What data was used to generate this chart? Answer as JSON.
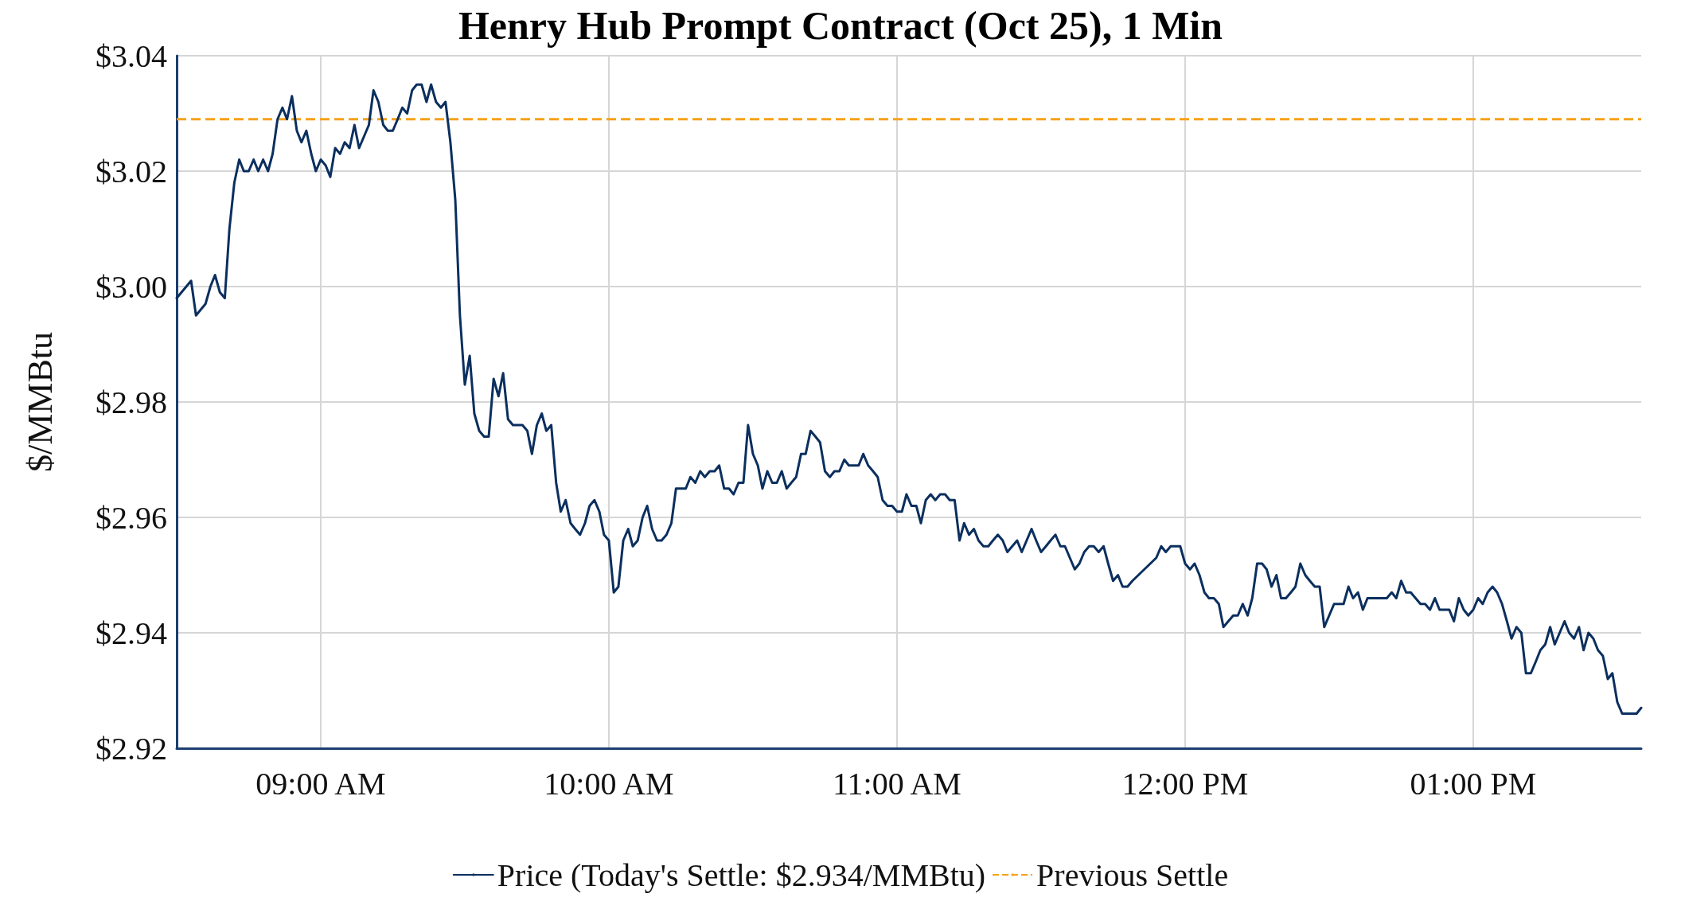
{
  "chart_data": {
    "type": "line",
    "title": "Henry Hub Prompt Contract (Oct 25), 1 Min",
    "ylabel": "$/MMBtu",
    "xlim": [
      8.5,
      13.583
    ],
    "xticks": [
      {
        "value": 9,
        "label": "09:00 AM"
      },
      {
        "value": 10,
        "label": "10:00 AM"
      },
      {
        "value": 11,
        "label": "11:00 AM"
      },
      {
        "value": 12,
        "label": "12:00 PM"
      },
      {
        "value": 13,
        "label": "01:00 PM"
      }
    ],
    "ylim": [
      2.92,
      3.04
    ],
    "yticks": [
      {
        "value": 2.92,
        "label": "$2.92"
      },
      {
        "value": 2.94,
        "label": "$2.94"
      },
      {
        "value": 2.96,
        "label": "$2.96"
      },
      {
        "value": 2.98,
        "label": "$2.98"
      },
      {
        "value": 3.0,
        "label": "$3.00"
      },
      {
        "value": 3.02,
        "label": "$3.02"
      },
      {
        "value": 3.04,
        "label": "$3.04"
      }
    ],
    "grid": true,
    "legend": "bottom",
    "marker": "none",
    "line_style": "solid",
    "ref_lines": [
      {
        "axis": "y",
        "value": 3.029,
        "label": "Previous Settle",
        "color": "#f7a11a",
        "line_style": "dashed"
      }
    ],
    "series": [
      {
        "name": "Price (Today's Settle: $2.934/MMBtu)",
        "color": "#0b2f5e",
        "x": [
          8.5,
          8.55,
          8.567,
          8.6,
          8.617,
          8.633,
          8.65,
          8.667,
          8.683,
          8.7,
          8.717,
          8.733,
          8.75,
          8.767,
          8.783,
          8.8,
          8.817,
          8.833,
          8.85,
          8.867,
          8.883,
          8.9,
          8.917,
          8.933,
          8.95,
          8.967,
          8.983,
          9,
          9.017,
          9.033,
          9.05,
          9.067,
          9.083,
          9.1,
          9.117,
          9.133,
          9.15,
          9.167,
          9.183,
          9.2,
          9.217,
          9.233,
          9.25,
          9.267,
          9.283,
          9.3,
          9.317,
          9.333,
          9.35,
          9.367,
          9.383,
          9.4,
          9.417,
          9.433,
          9.45,
          9.467,
          9.483,
          9.5,
          9.517,
          9.533,
          9.55,
          9.567,
          9.583,
          9.6,
          9.617,
          9.633,
          9.65,
          9.667,
          9.683,
          9.7,
          9.717,
          9.733,
          9.75,
          9.767,
          9.783,
          9.8,
          9.817,
          9.833,
          9.85,
          9.867,
          9.883,
          9.9,
          9.917,
          9.933,
          9.95,
          9.967,
          9.983,
          10,
          10.017,
          10.033,
          10.05,
          10.067,
          10.083,
          10.1,
          10.117,
          10.133,
          10.15,
          10.167,
          10.183,
          10.2,
          10.217,
          10.233,
          10.25,
          10.267,
          10.283,
          10.3,
          10.317,
          10.333,
          10.35,
          10.367,
          10.383,
          10.4,
          10.417,
          10.433,
          10.45,
          10.467,
          10.483,
          10.5,
          10.517,
          10.533,
          10.55,
          10.567,
          10.583,
          10.6,
          10.617,
          10.633,
          10.65,
          10.667,
          10.683,
          10.7,
          10.717,
          10.733,
          10.75,
          10.767,
          10.783,
          10.8,
          10.817,
          10.833,
          10.85,
          10.867,
          10.883,
          10.9,
          10.917,
          10.933,
          10.95,
          10.967,
          10.983,
          11,
          11.017,
          11.033,
          11.05,
          11.067,
          11.083,
          11.1,
          11.117,
          11.133,
          11.15,
          11.167,
          11.183,
          11.2,
          11.217,
          11.233,
          11.25,
          11.267,
          11.283,
          11.3,
          11.317,
          11.333,
          11.35,
          11.367,
          11.383,
          11.4,
          11.417,
          11.433,
          11.45,
          11.467,
          11.483,
          11.5,
          11.517,
          11.533,
          11.55,
          11.567,
          11.583,
          11.6,
          11.617,
          11.633,
          11.65,
          11.667,
          11.683,
          11.7,
          11.717,
          11.733,
          11.75,
          11.767,
          11.783,
          11.8,
          11.817,
          11.9,
          11.917,
          11.933,
          11.95,
          11.967,
          11.983,
          12,
          12.017,
          12.033,
          12.05,
          12.067,
          12.083,
          12.1,
          12.117,
          12.133,
          12.15,
          12.167,
          12.183,
          12.2,
          12.217,
          12.233,
          12.25,
          12.267,
          12.283,
          12.3,
          12.317,
          12.333,
          12.35,
          12.367,
          12.383,
          12.4,
          12.417,
          12.433,
          12.45,
          12.467,
          12.483,
          12.5,
          12.517,
          12.533,
          12.55,
          12.567,
          12.583,
          12.6,
          12.617,
          12.633,
          12.65,
          12.667,
          12.683,
          12.7,
          12.717,
          12.733,
          12.75,
          12.767,
          12.783,
          12.8,
          12.817,
          12.833,
          12.85,
          12.867,
          12.883,
          12.9,
          12.917,
          12.933,
          12.95,
          12.967,
          12.983,
          13,
          13.017,
          13.033,
          13.05,
          13.067,
          13.083,
          13.1,
          13.117,
          13.133,
          13.15,
          13.167,
          13.183,
          13.2,
          13.217,
          13.233,
          13.25,
          13.267,
          13.283,
          13.3,
          13.317,
          13.333,
          13.35,
          13.367,
          13.383,
          13.4,
          13.417,
          13.433,
          13.45,
          13.467,
          13.483,
          13.5,
          13.517,
          13.533,
          13.55,
          13.567,
          13.583
        ],
        "values": [
          2.998,
          3.001,
          2.995,
          2.997,
          3.0,
          3.002,
          2.999,
          2.998,
          3.01,
          3.018,
          3.022,
          3.02,
          3.02,
          3.022,
          3.02,
          3.022,
          3.02,
          3.023,
          3.029,
          3.031,
          3.029,
          3.033,
          3.027,
          3.025,
          3.027,
          3.023,
          3.02,
          3.022,
          3.021,
          3.019,
          3.024,
          3.023,
          3.025,
          3.024,
          3.028,
          3.024,
          3.026,
          3.028,
          3.034,
          3.032,
          3.028,
          3.027,
          3.027,
          3.029,
          3.031,
          3.03,
          3.034,
          3.035,
          3.035,
          3.032,
          3.035,
          3.032,
          3.031,
          3.032,
          3.025,
          3.015,
          2.995,
          2.983,
          2.988,
          2.978,
          2.975,
          2.974,
          2.974,
          2.984,
          2.981,
          2.985,
          2.977,
          2.976,
          2.976,
          2.976,
          2.975,
          2.971,
          2.976,
          2.978,
          2.975,
          2.976,
          2.966,
          2.961,
          2.963,
          2.959,
          2.958,
          2.957,
          2.959,
          2.962,
          2.963,
          2.961,
          2.957,
          2.956,
          2.947,
          2.948,
          2.956,
          2.958,
          2.955,
          2.956,
          2.96,
          2.962,
          2.958,
          2.956,
          2.956,
          2.957,
          2.959,
          2.965,
          2.965,
          2.965,
          2.967,
          2.966,
          2.968,
          2.967,
          2.968,
          2.968,
          2.969,
          2.965,
          2.965,
          2.964,
          2.966,
          2.966,
          2.976,
          2.971,
          2.969,
          2.965,
          2.968,
          2.966,
          2.966,
          2.968,
          2.965,
          2.966,
          2.967,
          2.971,
          2.971,
          2.975,
          2.974,
          2.973,
          2.968,
          2.967,
          2.968,
          2.968,
          2.97,
          2.969,
          2.969,
          2.969,
          2.971,
          2.969,
          2.968,
          2.967,
          2.963,
          2.962,
          2.962,
          2.961,
          2.961,
          2.964,
          2.962,
          2.962,
          2.959,
          2.963,
          2.964,
          2.963,
          2.964,
          2.964,
          2.963,
          2.963,
          2.956,
          2.959,
          2.957,
          2.958,
          2.956,
          2.955,
          2.955,
          2.956,
          2.957,
          2.956,
          2.954,
          2.955,
          2.956,
          2.954,
          2.956,
          2.958,
          2.956,
          2.954,
          2.955,
          2.956,
          2.957,
          2.955,
          2.955,
          2.953,
          2.951,
          2.952,
          2.954,
          2.955,
          2.955,
          2.954,
          2.955,
          2.952,
          2.949,
          2.95,
          2.948,
          2.948,
          2.949,
          2.953,
          2.955,
          2.954,
          2.955,
          2.955,
          2.955,
          2.952,
          2.951,
          2.952,
          2.95,
          2.947,
          2.946,
          2.946,
          2.945,
          2.941,
          2.942,
          2.943,
          2.943,
          2.945,
          2.943,
          2.946,
          2.952,
          2.952,
          2.951,
          2.948,
          2.95,
          2.946,
          2.946,
          2.947,
          2.948,
          2.952,
          2.95,
          2.949,
          2.948,
          2.948,
          2.941,
          2.943,
          2.945,
          2.945,
          2.945,
          2.948,
          2.946,
          2.947,
          2.944,
          2.946,
          2.946,
          2.946,
          2.946,
          2.946,
          2.947,
          2.946,
          2.949,
          2.947,
          2.947,
          2.946,
          2.945,
          2.945,
          2.944,
          2.946,
          2.944,
          2.944,
          2.944,
          2.942,
          2.946,
          2.944,
          2.943,
          2.944,
          2.946,
          2.945,
          2.947,
          2.948,
          2.947,
          2.945,
          2.942,
          2.939,
          2.941,
          2.94,
          2.933,
          2.933,
          2.935,
          2.937,
          2.938,
          2.941,
          2.938,
          2.94,
          2.942,
          2.94,
          2.939,
          2.941,
          2.937,
          2.94,
          2.939,
          2.937,
          2.936,
          2.932,
          2.933,
          2.928,
          2.926,
          2.926,
          2.926,
          2.926,
          2.927
        ]
      }
    ]
  }
}
